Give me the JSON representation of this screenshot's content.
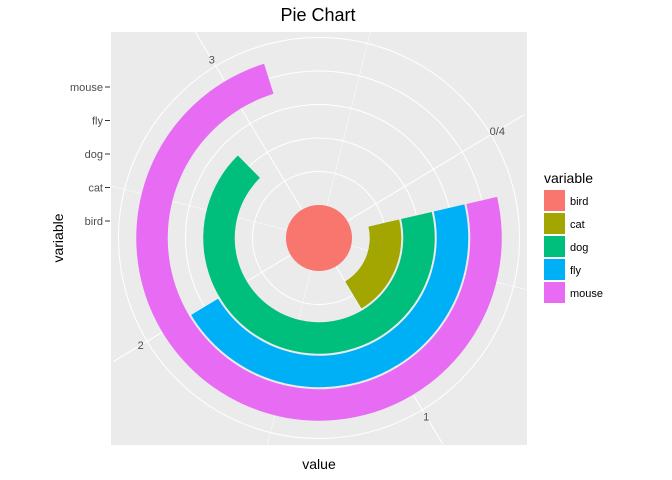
{
  "chart_data": {
    "type": "pie",
    "title": "Pie Chart",
    "xlabel": "value",
    "ylabel": "variable",
    "categories": [
      "bird",
      "cat",
      "dog",
      "fly",
      "mouse"
    ],
    "series": [
      {
        "name": "bird",
        "start": 0.0,
        "end": 4.0,
        "color": "#F8766D"
      },
      {
        "name": "cat",
        "start": 0.2,
        "end": 1.0,
        "color": "#A3A500"
      },
      {
        "name": "dog",
        "start": 0.2,
        "end": 2.85,
        "color": "#00BF7D"
      },
      {
        "name": "fly",
        "start": 0.2,
        "end": 2.0,
        "color": "#00B0F6"
      },
      {
        "name": "mouse",
        "start": 0.2,
        "end": 3.15,
        "color": "#E76BF3"
      }
    ],
    "theta_ticks": [
      {
        "value": 0,
        "label": "0/4"
      },
      {
        "value": 1,
        "label": "1"
      },
      {
        "value": 2,
        "label": "2"
      },
      {
        "value": 3,
        "label": "3"
      }
    ],
    "theta_range": [
      0,
      4
    ],
    "radial_ticks": [
      "bird",
      "cat",
      "dog",
      "fly",
      "mouse"
    ],
    "legend_title": "variable",
    "legend_position": "right",
    "grid": true
  }
}
